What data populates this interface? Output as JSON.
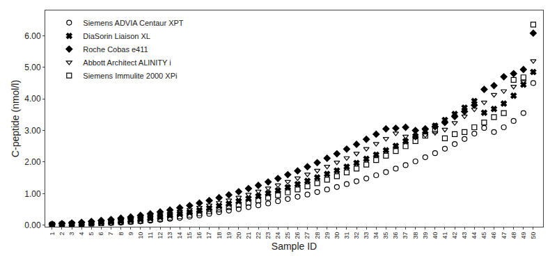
{
  "chart_data": {
    "type": "scatter",
    "xlabel": "Sample ID",
    "ylabel": "C-peptide (nmol/l)",
    "x": [
      1,
      2,
      3,
      4,
      5,
      6,
      7,
      8,
      9,
      10,
      11,
      12,
      13,
      14,
      15,
      16,
      17,
      18,
      19,
      20,
      21,
      22,
      23,
      24,
      25,
      26,
      27,
      28,
      29,
      30,
      31,
      32,
      33,
      34,
      35,
      36,
      37,
      38,
      39,
      40,
      41,
      42,
      43,
      44,
      45,
      46,
      47,
      48,
      49,
      50
    ],
    "xlim": [
      0.3,
      51
    ],
    "xticks": [
      1,
      2,
      3,
      4,
      5,
      6,
      7,
      8,
      9,
      10,
      11,
      12,
      13,
      14,
      15,
      16,
      17,
      18,
      19,
      20,
      21,
      22,
      23,
      24,
      25,
      26,
      27,
      28,
      29,
      30,
      31,
      32,
      33,
      34,
      35,
      36,
      37,
      38,
      39,
      40,
      41,
      42,
      43,
      44,
      45,
      46,
      47,
      48,
      49,
      50
    ],
    "ylim": [
      -0.05,
      6.8
    ],
    "yticks": [
      {
        "value": 0.0,
        "label": "0.00"
      },
      {
        "value": 1.0,
        "label": "1.00"
      },
      {
        "value": 2.0,
        "label": "2.00"
      },
      {
        "value": 3.0,
        "label": "3.00"
      },
      {
        "value": 4.0,
        "label": "4.00"
      },
      {
        "value": 5.0,
        "label": "5.00"
      },
      {
        "value": 6.0,
        "label": "6.00"
      }
    ],
    "grid": false,
    "legend": "upper left",
    "series": [
      {
        "name": "Siemens ADVIA Centaur XPT",
        "color": "#000000",
        "marker": "circle-open",
        "values": [
          0.01,
          0.02,
          0.03,
          0.04,
          0.05,
          0.06,
          0.07,
          0.08,
          0.1,
          0.12,
          0.14,
          0.17,
          0.2,
          0.23,
          0.27,
          0.31,
          0.36,
          0.41,
          0.46,
          0.51,
          0.57,
          0.63,
          0.69,
          0.76,
          0.83,
          0.9,
          0.97,
          1.05,
          1.13,
          1.21,
          1.3,
          1.39,
          1.48,
          1.58,
          1.68,
          1.79,
          1.9,
          2.02,
          2.15,
          2.28,
          2.42,
          2.57,
          2.73,
          2.9,
          3.08,
          2.95,
          3.1,
          3.3,
          3.55,
          4.5
        ]
      },
      {
        "name": "DiaSorin Liaison XL",
        "color": "#000000",
        "marker": "x",
        "values": [
          0.02,
          0.03,
          0.04,
          0.05,
          0.07,
          0.09,
          0.11,
          0.13,
          0.16,
          0.19,
          0.22,
          0.26,
          0.31,
          0.36,
          0.41,
          0.47,
          0.54,
          0.61,
          0.68,
          0.76,
          0.84,
          0.92,
          1.01,
          1.1,
          1.2,
          1.3,
          1.4,
          1.51,
          1.62,
          1.73,
          1.85,
          1.97,
          2.1,
          2.23,
          2.37,
          2.51,
          2.66,
          2.82,
          2.98,
          3.15,
          3.33,
          3.52,
          3.72,
          3.93,
          3.56,
          3.68,
          3.85,
          4.1,
          4.45,
          4.85
        ]
      },
      {
        "name": "Roche Cobas e411",
        "color": "#000000",
        "marker": "diamond",
        "values": [
          0.03,
          0.05,
          0.07,
          0.09,
          0.12,
          0.15,
          0.18,
          0.22,
          0.26,
          0.31,
          0.36,
          0.42,
          0.48,
          0.55,
          0.62,
          0.7,
          0.78,
          0.87,
          0.96,
          1.06,
          1.16,
          1.26,
          1.37,
          1.48,
          1.6,
          1.72,
          1.85,
          1.98,
          2.12,
          2.26,
          2.41,
          2.56,
          2.72,
          2.88,
          3.05,
          3.07,
          3.1,
          3.0,
          3.05,
          3.12,
          3.25,
          3.44,
          3.6,
          3.8,
          4.3,
          4.42,
          4.7,
          4.8,
          4.93,
          6.08
        ]
      },
      {
        "name": "Abbott Architect ALINITY i",
        "color": "#000000",
        "marker": "triangle-down-open",
        "values": [
          0.02,
          0.03,
          0.05,
          0.06,
          0.08,
          0.1,
          0.13,
          0.16,
          0.19,
          0.23,
          0.27,
          0.32,
          0.37,
          0.43,
          0.49,
          0.56,
          0.63,
          0.71,
          0.79,
          0.88,
          0.97,
          1.07,
          1.17,
          1.27,
          1.38,
          1.49,
          1.61,
          1.73,
          1.86,
          1.99,
          2.13,
          2.27,
          2.42,
          2.58,
          2.74,
          2.91,
          2.81,
          2.78,
          2.85,
          2.93,
          3.03,
          3.24,
          3.45,
          3.67,
          3.89,
          4.13,
          4.25,
          4.39,
          4.54,
          5.2
        ]
      },
      {
        "name": "Siemens Immulite 2000 XPi",
        "color": "#000000",
        "marker": "square-open",
        "values": [
          0.01,
          0.02,
          0.03,
          0.04,
          0.05,
          0.06,
          0.08,
          0.1,
          0.12,
          0.14,
          0.17,
          0.2,
          0.24,
          0.28,
          0.33,
          0.38,
          0.44,
          0.5,
          0.57,
          0.64,
          0.71,
          0.79,
          0.87,
          0.95,
          1.04,
          1.13,
          1.23,
          1.33,
          1.44,
          1.55,
          1.67,
          1.79,
          1.92,
          2.06,
          2.2,
          2.35,
          2.5,
          2.66,
          2.83,
          3.0,
          2.75,
          2.88,
          2.95,
          3.1,
          3.25,
          3.42,
          3.55,
          4.6,
          4.68,
          6.35
        ]
      }
    ]
  }
}
